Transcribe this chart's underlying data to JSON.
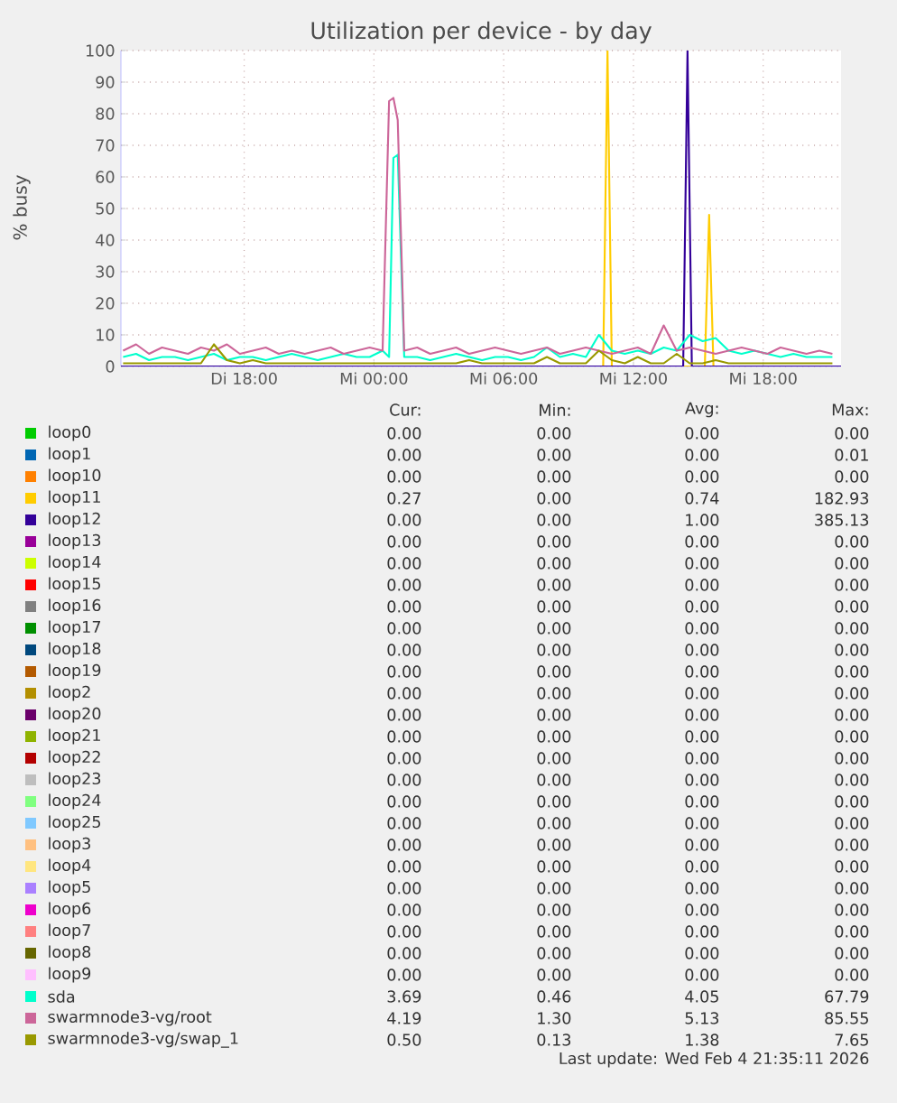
{
  "chart_data": {
    "type": "line",
    "title": "Utilization per device - by day",
    "ylabel": "% busy",
    "xlim": [
      "2026-02-03T12:18",
      "2026-02-04T21:36"
    ],
    "ylim": [
      0,
      100
    ],
    "xticks": [
      {
        "value": "2026-02-03T18:00",
        "label": "Di 18:00"
      },
      {
        "value": "2026-02-04T00:00",
        "label": "Mi 00:00"
      },
      {
        "value": "2026-02-04T06:00",
        "label": "Mi 06:00"
      },
      {
        "value": "2026-02-04T12:00",
        "label": "Mi 12:00"
      },
      {
        "value": "2026-02-04T18:00",
        "label": "Mi 18:00"
      }
    ],
    "yticks": [
      0,
      10,
      20,
      30,
      40,
      50,
      60,
      70,
      80,
      90,
      100
    ],
    "grid": true,
    "legend": "bottom",
    "line_style": "solid",
    "marker": "none",
    "series": [
      {
        "name": "loop0",
        "color": "#00cc00"
      },
      {
        "name": "loop1",
        "color": "#0066b3"
      },
      {
        "name": "loop10",
        "color": "#ff8000"
      },
      {
        "name": "loop11",
        "color": "#ffcc00",
        "x": [
          "2026-02-03T12:18",
          "2026-02-04T10:36",
          "2026-02-04T10:48",
          "2026-02-04T11:00",
          "2026-02-04T15:18",
          "2026-02-04T15:30",
          "2026-02-04T15:42",
          "2026-02-04T21:36"
        ],
        "values": [
          0,
          0,
          100,
          0,
          0,
          48,
          0,
          0
        ]
      },
      {
        "name": "loop12",
        "color": "#330099",
        "x": [
          "2026-02-03T12:18",
          "2026-02-04T14:18",
          "2026-02-04T14:30",
          "2026-02-04T14:42",
          "2026-02-04T21:36"
        ],
        "values": [
          0,
          0,
          100,
          0,
          0
        ]
      },
      {
        "name": "loop13",
        "color": "#990099"
      },
      {
        "name": "loop14",
        "color": "#ccff00"
      },
      {
        "name": "loop15",
        "color": "#ff0000"
      },
      {
        "name": "loop16",
        "color": "#808080"
      },
      {
        "name": "loop17",
        "color": "#008f00"
      },
      {
        "name": "loop18",
        "color": "#00487d"
      },
      {
        "name": "loop19",
        "color": "#b35a00"
      },
      {
        "name": "loop2",
        "color": "#b38f00"
      },
      {
        "name": "loop20",
        "color": "#6b006b"
      },
      {
        "name": "loop21",
        "color": "#8fb300"
      },
      {
        "name": "loop22",
        "color": "#b30000"
      },
      {
        "name": "loop23",
        "color": "#bebebe"
      },
      {
        "name": "loop24",
        "color": "#80ff80"
      },
      {
        "name": "loop25",
        "color": "#80c9ff"
      },
      {
        "name": "loop3",
        "color": "#ffc080"
      },
      {
        "name": "loop4",
        "color": "#ffe680"
      },
      {
        "name": "loop5",
        "color": "#aa80ff"
      },
      {
        "name": "loop6",
        "color": "#ee00cc"
      },
      {
        "name": "loop7",
        "color": "#ff8080"
      },
      {
        "name": "loop8",
        "color": "#666600"
      },
      {
        "name": "loop9",
        "color": "#ffbfff"
      },
      {
        "name": "sda",
        "color": "#00ffcc",
        "x": [
          "2026-02-03T12:24",
          "2026-02-03T13:00",
          "2026-02-03T13:36",
          "2026-02-03T14:12",
          "2026-02-03T14:48",
          "2026-02-03T15:24",
          "2026-02-03T16:00",
          "2026-02-03T16:36",
          "2026-02-03T17:12",
          "2026-02-03T17:48",
          "2026-02-03T18:24",
          "2026-02-03T19:00",
          "2026-02-03T19:36",
          "2026-02-03T20:12",
          "2026-02-03T20:48",
          "2026-02-03T21:24",
          "2026-02-03T22:00",
          "2026-02-03T22:36",
          "2026-02-03T23:12",
          "2026-02-03T23:48",
          "2026-02-04T00:24",
          "2026-02-04T00:42",
          "2026-02-04T00:54",
          "2026-02-04T01:06",
          "2026-02-04T01:24",
          "2026-02-04T02:00",
          "2026-02-04T02:36",
          "2026-02-04T03:12",
          "2026-02-04T03:48",
          "2026-02-04T04:24",
          "2026-02-04T05:00",
          "2026-02-04T05:36",
          "2026-02-04T06:12",
          "2026-02-04T06:48",
          "2026-02-04T07:24",
          "2026-02-04T08:00",
          "2026-02-04T08:36",
          "2026-02-04T09:12",
          "2026-02-04T09:48",
          "2026-02-04T10:24",
          "2026-02-04T11:00",
          "2026-02-04T11:36",
          "2026-02-04T12:12",
          "2026-02-04T12:48",
          "2026-02-04T13:24",
          "2026-02-04T14:00",
          "2026-02-04T14:36",
          "2026-02-04T15:12",
          "2026-02-04T15:48",
          "2026-02-04T16:24",
          "2026-02-04T17:00",
          "2026-02-04T17:36",
          "2026-02-04T18:12",
          "2026-02-04T18:48",
          "2026-02-04T19:24",
          "2026-02-04T20:00",
          "2026-02-04T20:36",
          "2026-02-04T21:12"
        ],
        "values": [
          3,
          4,
          2,
          3,
          3,
          2,
          3,
          4,
          2,
          3,
          3,
          2,
          3,
          4,
          3,
          2,
          3,
          4,
          3,
          3,
          5,
          3,
          66,
          67,
          3,
          3,
          2,
          3,
          4,
          3,
          2,
          3,
          3,
          2,
          3,
          6,
          3,
          4,
          3,
          10,
          5,
          4,
          5,
          4,
          6,
          5,
          10,
          8,
          9,
          5,
          4,
          5,
          4,
          3,
          4,
          3,
          3,
          3
        ]
      },
      {
        "name": "swarmnode3-vg/root",
        "color": "#cc6699",
        "x": [
          "2026-02-03T12:24",
          "2026-02-03T13:00",
          "2026-02-03T13:36",
          "2026-02-03T14:12",
          "2026-02-03T14:48",
          "2026-02-03T15:24",
          "2026-02-03T16:00",
          "2026-02-03T16:36",
          "2026-02-03T17:12",
          "2026-02-03T17:48",
          "2026-02-03T18:24",
          "2026-02-03T19:00",
          "2026-02-03T19:36",
          "2026-02-03T20:12",
          "2026-02-03T20:48",
          "2026-02-03T21:24",
          "2026-02-03T22:00",
          "2026-02-03T22:36",
          "2026-02-03T23:12",
          "2026-02-03T23:48",
          "2026-02-04T00:24",
          "2026-02-04T00:42",
          "2026-02-04T00:54",
          "2026-02-04T01:06",
          "2026-02-04T01:24",
          "2026-02-04T02:00",
          "2026-02-04T02:36",
          "2026-02-04T03:12",
          "2026-02-04T03:48",
          "2026-02-04T04:24",
          "2026-02-04T05:00",
          "2026-02-04T05:36",
          "2026-02-04T06:12",
          "2026-02-04T06:48",
          "2026-02-04T07:24",
          "2026-02-04T08:00",
          "2026-02-04T08:36",
          "2026-02-04T09:12",
          "2026-02-04T09:48",
          "2026-02-04T10:24",
          "2026-02-04T11:00",
          "2026-02-04T11:36",
          "2026-02-04T12:12",
          "2026-02-04T12:48",
          "2026-02-04T13:24",
          "2026-02-04T14:00",
          "2026-02-04T14:36",
          "2026-02-04T15:12",
          "2026-02-04T15:48",
          "2026-02-04T16:24",
          "2026-02-04T17:00",
          "2026-02-04T17:36",
          "2026-02-04T18:12",
          "2026-02-04T18:48",
          "2026-02-04T19:24",
          "2026-02-04T20:00",
          "2026-02-04T20:36",
          "2026-02-04T21:12"
        ],
        "values": [
          5,
          7,
          4,
          6,
          5,
          4,
          6,
          5,
          7,
          4,
          5,
          6,
          4,
          5,
          4,
          5,
          6,
          4,
          5,
          6,
          5,
          84,
          85,
          78,
          5,
          6,
          4,
          5,
          6,
          4,
          5,
          6,
          5,
          4,
          5,
          6,
          4,
          5,
          6,
          5,
          4,
          5,
          6,
          4,
          13,
          5,
          6,
          5,
          4,
          5,
          6,
          5,
          4,
          6,
          5,
          4,
          5,
          4
        ]
      },
      {
        "name": "swarmnode3-vg/swap_1",
        "color": "#999900",
        "x": [
          "2026-02-03T12:24",
          "2026-02-03T13:00",
          "2026-02-03T13:36",
          "2026-02-03T14:12",
          "2026-02-03T14:48",
          "2026-02-03T15:24",
          "2026-02-03T16:00",
          "2026-02-03T16:36",
          "2026-02-03T17:12",
          "2026-02-03T17:48",
          "2026-02-03T18:24",
          "2026-02-03T19:00",
          "2026-02-03T19:36",
          "2026-02-03T20:12",
          "2026-02-03T20:48",
          "2026-02-03T21:24",
          "2026-02-03T22:00",
          "2026-02-03T22:36",
          "2026-02-03T23:12",
          "2026-02-03T23:48",
          "2026-02-04T00:24",
          "2026-02-04T00:42",
          "2026-02-04T00:54",
          "2026-02-04T01:06",
          "2026-02-04T01:24",
          "2026-02-04T02:00",
          "2026-02-04T02:36",
          "2026-02-04T03:12",
          "2026-02-04T03:48",
          "2026-02-04T04:24",
          "2026-02-04T05:00",
          "2026-02-04T05:36",
          "2026-02-04T06:12",
          "2026-02-04T06:48",
          "2026-02-04T07:24",
          "2026-02-04T08:00",
          "2026-02-04T08:36",
          "2026-02-04T09:12",
          "2026-02-04T09:48",
          "2026-02-04T10:24",
          "2026-02-04T11:00",
          "2026-02-04T11:36",
          "2026-02-04T12:12",
          "2026-02-04T12:48",
          "2026-02-04T13:24",
          "2026-02-04T14:00",
          "2026-02-04T14:36",
          "2026-02-04T15:12",
          "2026-02-04T15:48",
          "2026-02-04T16:24",
          "2026-02-04T17:00",
          "2026-02-04T17:36",
          "2026-02-04T18:12",
          "2026-02-04T18:48",
          "2026-02-04T19:24",
          "2026-02-04T20:00",
          "2026-02-04T20:36",
          "2026-02-04T21:12"
        ],
        "values": [
          1,
          1,
          1,
          1,
          1,
          1,
          1,
          7,
          2,
          1,
          2,
          1,
          1,
          1,
          1,
          1,
          1,
          1,
          1,
          1,
          1,
          1,
          1,
          1,
          1,
          1,
          1,
          1,
          1,
          2,
          1,
          1,
          1,
          1,
          1,
          3,
          1,
          1,
          1,
          5,
          2,
          1,
          3,
          1,
          1,
          4,
          1,
          1,
          2,
          1,
          1,
          1,
          1,
          1,
          1,
          1,
          1,
          1
        ]
      }
    ],
    "annotations": [
      "Cur:",
      "Min:",
      "Avg:",
      "Max:",
      "0.00",
      "0.00",
      "0.00",
      "0.00",
      "0.00",
      "0.00",
      "0.00",
      "0.01",
      "0.00",
      "0.00",
      "0.00",
      "0.00",
      "0.27",
      "0.00",
      "0.74",
      "182.93",
      "0.00",
      "0.00",
      "1.00",
      "385.13",
      "0.00",
      "0.00",
      "0.00",
      "0.00",
      "0.00",
      "0.00",
      "0.00",
      "0.00",
      "0.00",
      "0.00",
      "0.00",
      "0.00",
      "0.00",
      "0.00",
      "0.00",
      "0.00",
      "0.00",
      "0.00",
      "0.00",
      "0.00",
      "0.00",
      "0.00",
      "0.00",
      "0.00",
      "0.00",
      "0.00",
      "0.00",
      "0.00",
      "0.00",
      "0.00",
      "0.00",
      "0.00",
      "0.00",
      "0.00",
      "0.00",
      "0.00",
      "0.00",
      "0.00",
      "0.00",
      "0.00",
      "0.00",
      "0.00",
      "0.00",
      "0.00",
      "0.00",
      "0.00",
      "0.00",
      "0.00",
      "0.00",
      "0.00",
      "0.00",
      "0.00",
      "0.00",
      "0.00",
      "0.00",
      "0.00",
      "0.00",
      "0.00",
      "0.00",
      "0.00",
      "0.00",
      "0.00",
      "0.00",
      "0.00",
      "0.00",
      "0.00",
      "0.00",
      "0.00",
      "0.00",
      "0.00",
      "0.00",
      "0.00",
      "0.00",
      "0.00",
      "0.00",
      "0.00",
      "0.00",
      "0.00",
      "0.00",
      "0.00",
      "0.00",
      "0.00",
      "0.00",
      "0.00",
      "3.69",
      "0.46",
      "4.05",
      "67.79",
      "4.19",
      "1.30",
      "5.13",
      "85.55",
      "0.50",
      "0.13",
      "1.38",
      "7.65",
      "Last update: Wed Feb  4 21:35:11 2026"
    ]
  }
}
